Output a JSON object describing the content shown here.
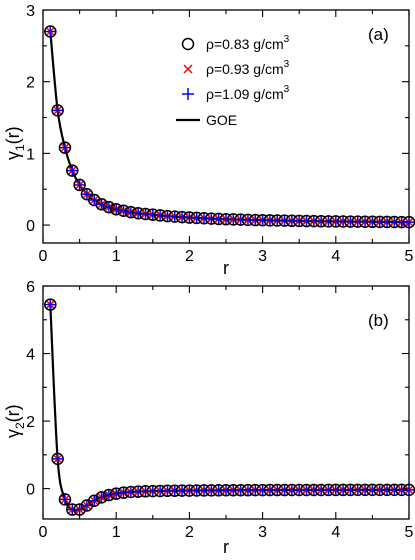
{
  "chart_data": [
    {
      "type": "scatter",
      "panel_label": "(a)",
      "xlabel": "r",
      "ylabel": "γ",
      "ylabel_sub": "1",
      "ylabel_suffix": "(r)",
      "xlim": [
        0,
        5
      ],
      "ylim": [
        -0.25,
        3
      ],
      "xticks": [
        0,
        1,
        2,
        3,
        4,
        5
      ],
      "yticks": [
        0,
        1,
        2,
        3
      ],
      "legend_position": "top-right",
      "series": [
        {
          "name": "ρ=0.83 g/cm",
          "name_sup": "3",
          "marker": "circle",
          "color": "#000000"
        },
        {
          "name": "ρ=0.93 g/cm",
          "name_sup": "3",
          "marker": "x",
          "color": "#ff0000"
        },
        {
          "name": "ρ=1.09 g/cm",
          "name_sup": "3",
          "marker": "plus",
          "color": "#0000ff"
        },
        {
          "name": "GOE",
          "marker": "line",
          "color": "#000000"
        }
      ],
      "x": [
        0.1,
        0.2,
        0.3,
        0.4,
        0.5,
        0.6,
        0.7,
        0.8,
        0.9,
        1.0,
        1.1,
        1.2,
        1.3,
        1.4,
        1.5,
        1.6,
        1.7,
        1.8,
        1.9,
        2.0,
        2.1,
        2.2,
        2.3,
        2.4,
        2.5,
        2.6,
        2.7,
        2.8,
        2.9,
        3.0,
        3.1,
        3.2,
        3.3,
        3.4,
        3.5,
        3.6,
        3.7,
        3.8,
        3.9,
        4.0,
        4.1,
        4.2,
        4.3,
        4.4,
        4.5,
        4.6,
        4.7,
        4.8,
        4.9,
        5.0
      ],
      "y": [
        2.7,
        1.6,
        1.08,
        0.76,
        0.56,
        0.43,
        0.35,
        0.29,
        0.25,
        0.22,
        0.2,
        0.18,
        0.165,
        0.155,
        0.145,
        0.135,
        0.125,
        0.118,
        0.111,
        0.105,
        0.1,
        0.095,
        0.09,
        0.086,
        0.082,
        0.079,
        0.076,
        0.073,
        0.07,
        0.068,
        0.066,
        0.064,
        0.062,
        0.06,
        0.058,
        0.056,
        0.055,
        0.053,
        0.052,
        0.051,
        0.05,
        0.049,
        0.048,
        0.047,
        0.046,
        0.045,
        0.044,
        0.043,
        0.042,
        0.041
      ]
    },
    {
      "type": "scatter",
      "panel_label": "(b)",
      "xlabel": "r",
      "ylabel": "γ",
      "ylabel_sub": "2",
      "ylabel_suffix": "(r)",
      "xlim": [
        0,
        5
      ],
      "ylim": [
        -0.9,
        6
      ],
      "xticks": [
        0,
        1,
        2,
        3,
        4,
        5
      ],
      "yticks": [
        0,
        2,
        4,
        6
      ],
      "series": [
        {
          "name": "ρ=0.83 g/cm",
          "marker": "circle",
          "color": "#000000"
        },
        {
          "name": "ρ=0.93 g/cm",
          "marker": "x",
          "color": "#ff0000"
        },
        {
          "name": "ρ=1.09 g/cm",
          "marker": "plus",
          "color": "#0000ff"
        },
        {
          "name": "GOE",
          "marker": "line",
          "color": "#000000"
        }
      ],
      "x": [
        0.1,
        0.2,
        0.3,
        0.4,
        0.5,
        0.6,
        0.7,
        0.8,
        0.9,
        1.0,
        1.1,
        1.2,
        1.3,
        1.4,
        1.5,
        1.6,
        1.7,
        1.8,
        1.9,
        2.0,
        2.1,
        2.2,
        2.3,
        2.4,
        2.5,
        2.6,
        2.7,
        2.8,
        2.9,
        3.0,
        3.1,
        3.2,
        3.3,
        3.4,
        3.5,
        3.6,
        3.7,
        3.8,
        3.9,
        4.0,
        4.1,
        4.2,
        4.3,
        4.4,
        4.5,
        4.6,
        4.7,
        4.8,
        4.9,
        5.0
      ],
      "y": [
        5.45,
        0.88,
        -0.32,
        -0.62,
        -0.62,
        -0.5,
        -0.36,
        -0.26,
        -0.19,
        -0.15,
        -0.12,
        -0.1,
        -0.09,
        -0.08,
        -0.075,
        -0.07,
        -0.065,
        -0.062,
        -0.06,
        -0.058,
        -0.056,
        -0.054,
        -0.052,
        -0.05,
        -0.049,
        -0.048,
        -0.047,
        -0.046,
        -0.045,
        -0.044,
        -0.043,
        -0.042,
        -0.042,
        -0.041,
        -0.041,
        -0.04,
        -0.04,
        -0.04,
        -0.039,
        -0.039,
        -0.039,
        -0.039,
        -0.038,
        -0.038,
        -0.038,
        -0.038,
        -0.038,
        -0.038,
        -0.038,
        -0.038
      ]
    }
  ]
}
